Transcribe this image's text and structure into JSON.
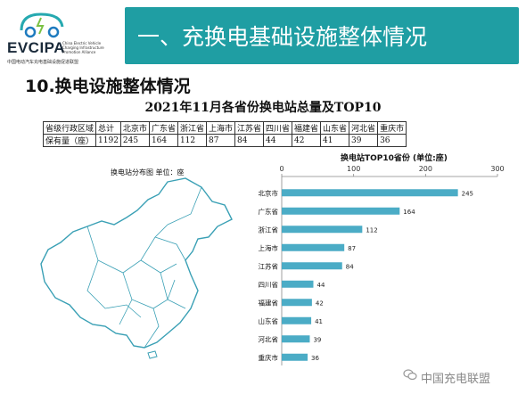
{
  "header": {
    "logo_text": "EVCIPA",
    "logo_subtitle": "中国电动汽车充电基础设施促进联盟",
    "logo_english": "China Electric Vehicle Charging Infrastructure Promotion Alliance",
    "title": "一、充换电基础设施整体情况"
  },
  "section_title": "10.换电设施整体情况",
  "table": {
    "title": "2021年11月各省份换电站总量及TOP10",
    "header": [
      "省级行政区域",
      "总计",
      "北京市",
      "广东省",
      "浙江省",
      "上海市",
      "江苏省",
      "四川省",
      "福建省",
      "山东省",
      "河北省",
      "重庆市"
    ],
    "row": [
      "保有量（座）",
      "1192",
      "245",
      "164",
      "112",
      "87",
      "84",
      "44",
      "42",
      "41",
      "39",
      "36"
    ]
  },
  "map": {
    "title": "换电站分布图  单位：座"
  },
  "watermark": "中国充电联盟",
  "colors": {
    "title_bar": "#1f9ea3",
    "bar": "#4bacc6"
  },
  "chart_data": {
    "type": "bar",
    "orientation": "horizontal",
    "title": "换电站TOP10省份 (单位:座)",
    "categories": [
      "北京市",
      "广东省",
      "浙江省",
      "上海市",
      "江苏省",
      "四川省",
      "福建省",
      "山东省",
      "河北省",
      "重庆市"
    ],
    "values": [
      245,
      164,
      112,
      87,
      84,
      44,
      42,
      41,
      39,
      36
    ],
    "xlim": [
      0,
      300
    ],
    "xticks": [
      0,
      100,
      200,
      300
    ],
    "axis_position": "top",
    "grid": false
  }
}
